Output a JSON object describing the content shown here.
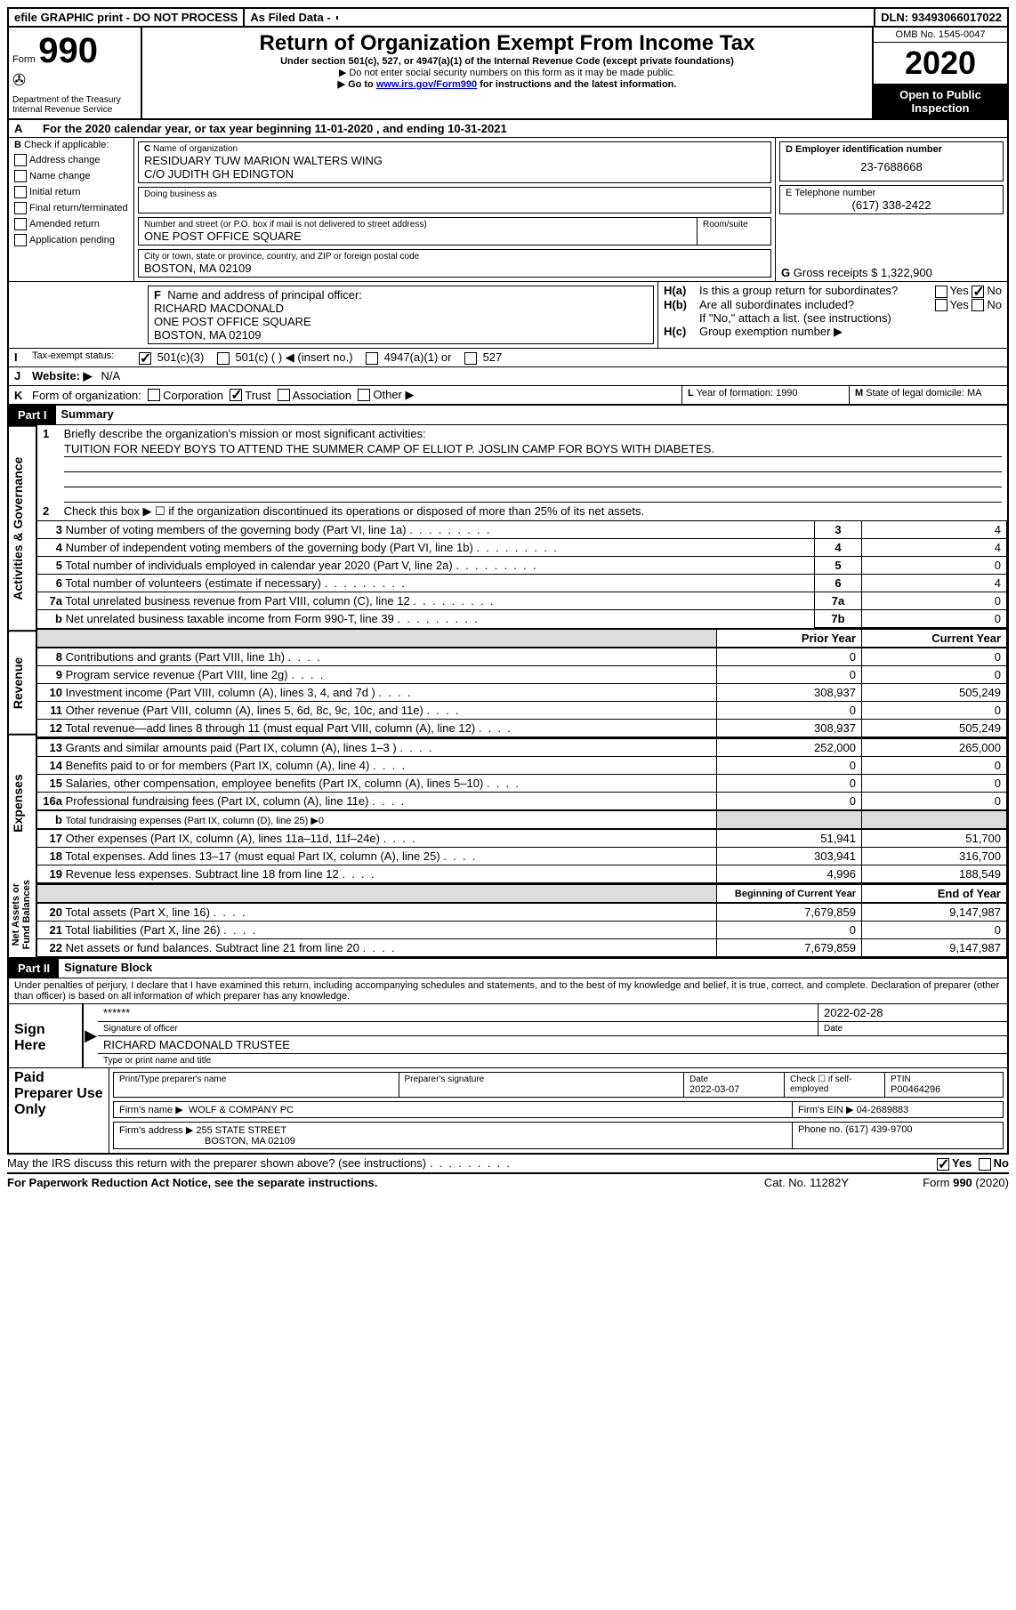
{
  "topbar": {
    "efile": "efile GRAPHIC print - DO NOT PROCESS",
    "asfiled": "As Filed Data -",
    "dln_label": "DLN:",
    "dln": "93493066017022"
  },
  "header": {
    "form": "Form",
    "num": "990",
    "dept": "Department of the Treasury",
    "irs": "Internal Revenue Service",
    "title": "Return of Organization Exempt From Income Tax",
    "subtitle": "Under section 501(c), 527, or 4947(a)(1) of the Internal Revenue Code (except private foundations)",
    "warn1": "▶ Do not enter social security numbers on this form as it may be made public.",
    "warn2a": "▶ Go to ",
    "warn2link": "www.irs.gov/Form990",
    "warn2b": " for instructions and the latest information.",
    "omb": "OMB No. 1545-0047",
    "year": "2020",
    "open": "Open to Public Inspection"
  },
  "A": {
    "label": "A",
    "text": "For the 2020 calendar year, or tax year beginning 11-01-2020   , and ending 10-31-2021"
  },
  "B": {
    "label": "B",
    "check": "Check if applicable:",
    "addr": "Address change",
    "name": "Name change",
    "init": "Initial return",
    "final": "Final return/terminated",
    "amend": "Amended return",
    "app": "Application pending"
  },
  "C": {
    "label": "C",
    "nameLabel": "Name of organization",
    "name1": "RESIDUARY TUW MARION WALTERS WING",
    "name2": "C/O JUDITH GH EDINGTON",
    "dba": "Doing business as",
    "streetLabel": "Number and street (or P.O. box if mail is not delivered to street address)",
    "roomLabel": "Room/suite",
    "street": "ONE POST OFFICE SQUARE",
    "cityLabel": "City or town, state or province, country, and ZIP or foreign postal code",
    "city": "BOSTON, MA  02109"
  },
  "D": {
    "label": "D Employer identification number",
    "ein": "23-7688668"
  },
  "E": {
    "label": "E Telephone number",
    "phone": "(617) 338-2422"
  },
  "G": {
    "label": "G",
    "text": "Gross receipts $",
    "val": "1,322,900"
  },
  "F": {
    "label": "F",
    "text": "Name and address of principal officer:",
    "l1": "RICHARD MACDONALD",
    "l2": "ONE POST OFFICE SQUARE",
    "l3": "BOSTON, MA  02109"
  },
  "H": {
    "a": "H(a)",
    "aText": "Is this a group return for subordinates?",
    "b": "H(b)",
    "bText": "Are all subordinates included?",
    "note": "If \"No,\" attach a list. (see instructions)",
    "c": "H(c)",
    "cText": "Group exemption number ▶",
    "yes": "Yes",
    "no": "No"
  },
  "I": {
    "label": "I",
    "text": "Tax-exempt status:",
    "o501c3": "501(c)(3)",
    "o501c": "501(c) (   ) ◀ (insert no.)",
    "o4947": "4947(a)(1) or",
    "o527": "527"
  },
  "J": {
    "label": "J",
    "text": "Website: ▶",
    "val": "N/A"
  },
  "K": {
    "label": "K",
    "text": "Form of organization:",
    "corp": "Corporation",
    "trust": "Trust",
    "assoc": "Association",
    "other": "Other ▶"
  },
  "L": {
    "label": "L",
    "text": "Year of formation: 1990"
  },
  "M": {
    "label": "M",
    "text": "State of legal domicile: MA"
  },
  "partI": {
    "label": "Part I",
    "title": "Summary"
  },
  "summary": {
    "l1label": "1",
    "l1": "Briefly describe the organization's mission or most significant activities:",
    "l1text": "TUITION FOR NEEDY BOYS TO ATTEND THE SUMMER CAMP OF ELLIOT P. JOSLIN CAMP FOR BOYS WITH DIABETES.",
    "l2label": "2",
    "l2": "Check this box ▶ ☐ if the organization discontinued its operations or disposed of more than 25% of its net assets.",
    "rows": [
      {
        "n": "3",
        "t": "Number of voting members of the governing body (Part VI, line 1a)",
        "code": "3",
        "v": "4"
      },
      {
        "n": "4",
        "t": "Number of independent voting members of the governing body (Part VI, line 1b)",
        "code": "4",
        "v": "4"
      },
      {
        "n": "5",
        "t": "Total number of individuals employed in calendar year 2020 (Part V, line 2a)",
        "code": "5",
        "v": "0"
      },
      {
        "n": "6",
        "t": "Total number of volunteers (estimate if necessary)",
        "code": "6",
        "v": "4"
      },
      {
        "n": "7a",
        "t": "Total unrelated business revenue from Part VIII, column (C), line 12",
        "code": "7a",
        "v": "0"
      },
      {
        "n": "b",
        "t": "Net unrelated business taxable income from Form 990-T, line 39",
        "code": "7b",
        "v": "0"
      }
    ],
    "prior": "Prior Year",
    "current": "Current Year",
    "rev_rows": [
      {
        "n": "8",
        "t": "Contributions and grants (Part VIII, line 1h)",
        "py": "0",
        "cy": "0"
      },
      {
        "n": "9",
        "t": "Program service revenue (Part VIII, line 2g)",
        "py": "0",
        "cy": "0"
      },
      {
        "n": "10",
        "t": "Investment income (Part VIII, column (A), lines 3, 4, and 7d )",
        "py": "308,937",
        "cy": "505,249"
      },
      {
        "n": "11",
        "t": "Other revenue (Part VIII, column (A), lines 5, 6d, 8c, 9c, 10c, and 11e)",
        "py": "0",
        "cy": "0"
      },
      {
        "n": "12",
        "t": "Total revenue—add lines 8 through 11 (must equal Part VIII, column (A), line 12)",
        "py": "308,937",
        "cy": "505,249"
      }
    ],
    "exp_rows": [
      {
        "n": "13",
        "t": "Grants and similar amounts paid (Part IX, column (A), lines 1–3 )",
        "py": "252,000",
        "cy": "265,000"
      },
      {
        "n": "14",
        "t": "Benefits paid to or for members (Part IX, column (A), line 4)",
        "py": "0",
        "cy": "0"
      },
      {
        "n": "15",
        "t": "Salaries, other compensation, employee benefits (Part IX, column (A), lines 5–10)",
        "py": "0",
        "cy": "0"
      },
      {
        "n": "16a",
        "t": "Professional fundraising fees (Part IX, column (A), line 11e)",
        "py": "0",
        "cy": "0"
      }
    ],
    "l16b_n": "b",
    "l16b": "Total fundraising expenses (Part IX, column (D), line 25) ▶0",
    "exp_rows2": [
      {
        "n": "17",
        "t": "Other expenses (Part IX, column (A), lines 11a–11d, 11f–24e)",
        "py": "51,941",
        "cy": "51,700"
      },
      {
        "n": "18",
        "t": "Total expenses. Add lines 13–17 (must equal Part IX, column (A), line 25)",
        "py": "303,941",
        "cy": "316,700"
      },
      {
        "n": "19",
        "t": "Revenue less expenses. Subtract line 18 from line 12",
        "py": "4,996",
        "cy": "188,549"
      }
    ],
    "begin": "Beginning of Current Year",
    "end": "End of Year",
    "net_rows": [
      {
        "n": "20",
        "t": "Total assets (Part X, line 16)",
        "py": "7,679,859",
        "cy": "9,147,987"
      },
      {
        "n": "21",
        "t": "Total liabilities (Part X, line 26)",
        "py": "0",
        "cy": "0"
      },
      {
        "n": "22",
        "t": "Net assets or fund balances. Subtract line 21 from line 20",
        "py": "7,679,859",
        "cy": "9,147,987"
      }
    ],
    "sideGov": "Activities & Governance",
    "sideRev": "Revenue",
    "sideExp": "Expenses",
    "sideNet": "Net Assets or Fund Balances"
  },
  "partII": {
    "label": "Part II",
    "title": "Signature Block"
  },
  "sig": {
    "decl": "Under penalties of perjury, I declare that I have examined this return, including accompanying schedules and statements, and to the best of my knowledge and belief, it is true, correct, and complete. Declaration of preparer (other than officer) is based on all information of which preparer has any knowledge.",
    "signHere": "Sign Here",
    "stars": "******",
    "sigOfficer": "Signature of officer",
    "date": "2022-02-28",
    "dateLabel": "Date",
    "nameTitle": "RICHARD MACDONALD TRUSTEE",
    "typeLabel": "Type or print name and title",
    "paid": "Paid Preparer Use Only",
    "prepName": "Print/Type preparer's name",
    "prepSig": "Preparer's signature",
    "prepDate": "2022-03-07",
    "checkIf": "Check ☐ if self-employed",
    "ptinLabel": "PTIN",
    "ptin": "P00464296",
    "firmName": "Firm's name    ▶",
    "firm": "WOLF & COMPANY PC",
    "firmEinLabel": "Firm's EIN ▶",
    "firmEin": "04-2689883",
    "firmAddr": "Firm's address ▶",
    "addr1": "255 STATE STREET",
    "addr2": "BOSTON, MA  02109",
    "phoneLabel": "Phone no.",
    "phone": "(617) 439-9700"
  },
  "footer": {
    "discuss": "May the IRS discuss this return with the preparer shown above? (see instructions)",
    "yes": "Yes",
    "no": "No",
    "paperwork": "For Paperwork Reduction Act Notice, see the separate instructions.",
    "cat": "Cat. No. 11282Y",
    "form": "Form 990 (2020)"
  }
}
